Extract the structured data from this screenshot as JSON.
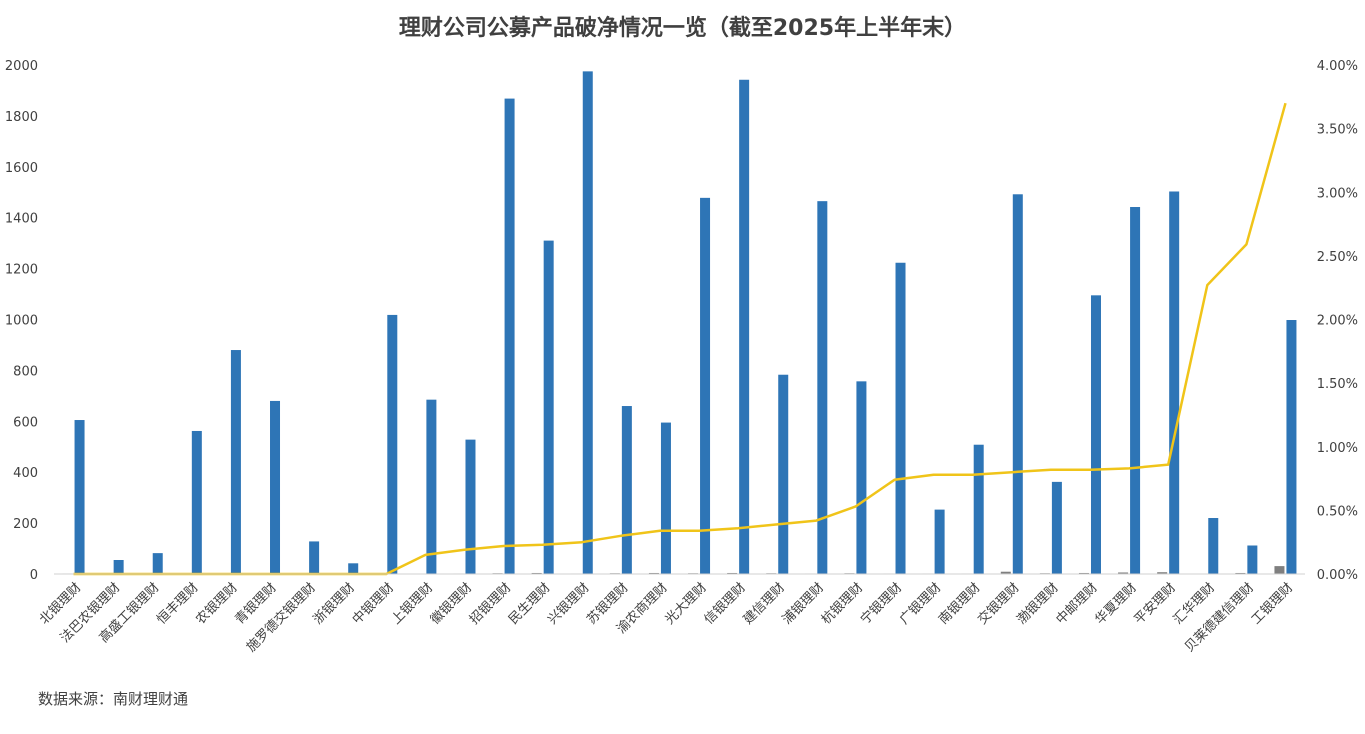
{
  "title": "理财公司公募产品破净情况一览（截至2025年上半年末）",
  "source_note": "数据来源：南财理财通",
  "chart_data": {
    "type": "bar",
    "title": "理财公司公募产品破净情况一览（截至2025年上半年末）",
    "categories": [
      "北银理财",
      "法巴农银理财",
      "高盛工银理财",
      "恒丰理财",
      "农银理财",
      "青银理财",
      "施罗德交银理财",
      "浙银理财",
      "中银理财",
      "上银理财",
      "徽银理财",
      "招银理财",
      "民生理财",
      "兴银理财",
      "苏银理财",
      "渝农商理财",
      "光大理财",
      "信银理财",
      "建信理财",
      "浦银理财",
      "杭银理财",
      "宁银理财",
      "广银理财",
      "南银理财",
      "交银理财",
      "渤银理财",
      "中邮理财",
      "华夏理财",
      "平安理财",
      "汇华理财",
      "贝莱德建信理财",
      "工银理财"
    ],
    "series": [
      {
        "axis": "left",
        "kind": "bar",
        "color": "#2e75b6",
        "values": [
          605,
          55,
          82,
          562,
          880,
          680,
          128,
          42,
          1018,
          685,
          528,
          1868,
          1310,
          1975,
          660,
          595,
          1478,
          1942,
          783,
          1465,
          757,
          1223,
          253,
          508,
          1492,
          362,
          1095,
          1442,
          1503,
          220,
          112,
          998
        ]
      },
      {
        "axis": "left",
        "kind": "bar",
        "color": "#7f7f7f",
        "values": [
          2,
          1,
          1,
          1,
          2,
          1,
          1,
          1,
          2,
          1,
          2,
          3,
          4,
          2,
          3,
          4,
          3,
          4,
          3,
          2,
          3,
          2,
          2,
          2,
          9,
          3,
          4,
          6,
          7,
          1,
          4,
          31
        ]
      },
      {
        "axis": "right",
        "kind": "line",
        "color": "#f0c419",
        "values": [
          0.0,
          0.0,
          0.0,
          0.0,
          0.0,
          0.0,
          0.0,
          0.0,
          0.0,
          0.15,
          0.19,
          0.22,
          0.23,
          0.25,
          0.3,
          0.34,
          0.34,
          0.36,
          0.39,
          0.42,
          0.53,
          0.74,
          0.78,
          0.78,
          0.8,
          0.82,
          0.82,
          0.83,
          0.86,
          2.27,
          2.59,
          3.7
        ]
      }
    ],
    "y_left": {
      "min": 0,
      "max": 2000,
      "ticks": [
        0,
        200,
        400,
        600,
        800,
        1000,
        1200,
        1400,
        1600,
        1800,
        2000
      ]
    },
    "y_right": {
      "min": 0,
      "max": 4,
      "ticks": [
        "0.00%",
        "0.50%",
        "1.00%",
        "1.50%",
        "2.00%",
        "2.50%",
        "3.00%",
        "3.50%",
        "4.00%"
      ]
    },
    "grid": false,
    "legend": "none"
  }
}
